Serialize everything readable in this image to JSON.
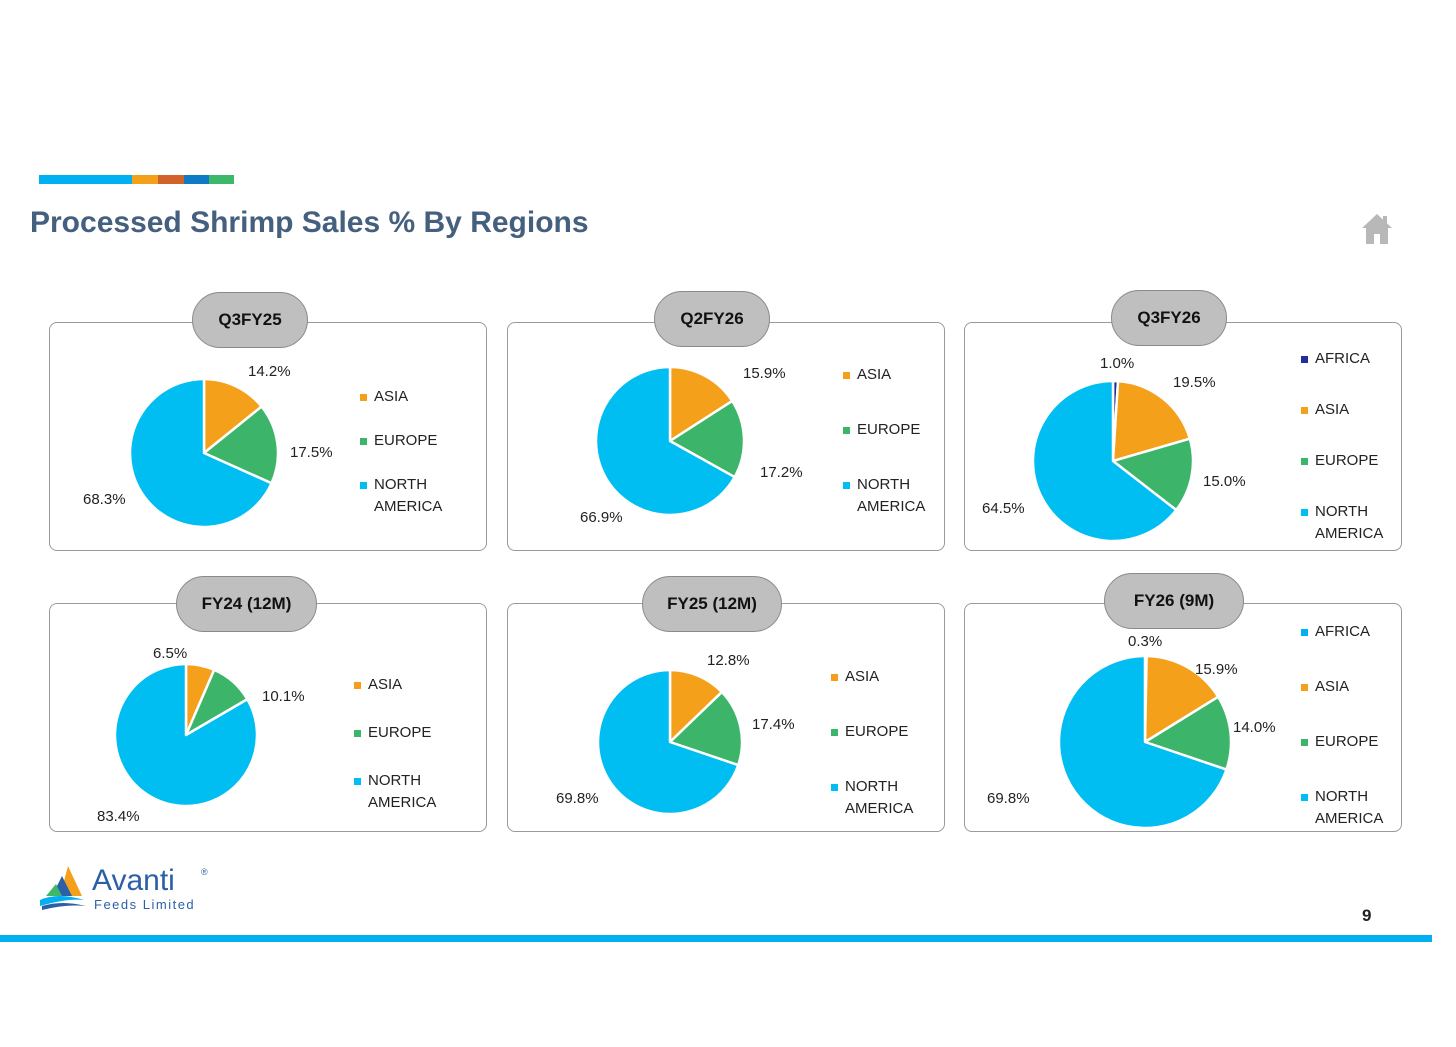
{
  "title": "Processed Shrimp Sales % By Regions",
  "accent_colors": [
    "#00b0f0",
    "#f5a01b",
    "#d0622b",
    "#0f7bc4",
    "#3db86b"
  ],
  "region_colors": {
    "AFRICA": "#1f2fa0",
    "AFRICA_FY26": "#00b0f0",
    "ASIA": "#f5a01b",
    "EUROPE": "#3cb56b",
    "NORTH AMERICA": "#00bdf2"
  },
  "footer": {
    "brand": "Avanti",
    "brand_sub": "Feeds Limited",
    "registered": "®",
    "page_number": "9"
  },
  "chart_data": [
    {
      "type": "pie",
      "title": "Q3FY25",
      "categories": [
        "ASIA",
        "EUROPE",
        "NORTH AMERICA"
      ],
      "values": [
        14.2,
        17.5,
        68.3
      ],
      "labels": [
        "14.2%",
        "17.5%",
        "68.3%"
      ],
      "legend": [
        "ASIA",
        "EUROPE",
        "NORTH\nAMERICA"
      ],
      "colors": [
        "#f5a01b",
        "#3cb56b",
        "#00bdf2"
      ]
    },
    {
      "type": "pie",
      "title": "Q2FY26",
      "categories": [
        "ASIA",
        "EUROPE",
        "NORTH AMERICA"
      ],
      "values": [
        15.9,
        17.2,
        66.9
      ],
      "labels": [
        "15.9%",
        "17.2%",
        "66.9%"
      ],
      "legend": [
        "ASIA",
        "EUROPE",
        "NORTH\nAMERICA"
      ],
      "colors": [
        "#f5a01b",
        "#3cb56b",
        "#00bdf2"
      ]
    },
    {
      "type": "pie",
      "title": "Q3FY26",
      "categories": [
        "AFRICA",
        "ASIA",
        "EUROPE",
        "NORTH AMERICA"
      ],
      "values": [
        1.0,
        19.5,
        15.0,
        64.5
      ],
      "labels": [
        "1.0%",
        "19.5%",
        "15.0%",
        "64.5%"
      ],
      "legend": [
        "AFRICA",
        "ASIA",
        "EUROPE",
        "NORTH\nAMERICA"
      ],
      "colors": [
        "#1f2fa0",
        "#f5a01b",
        "#3cb56b",
        "#00bdf2"
      ]
    },
    {
      "type": "pie",
      "title": "FY24 (12M)",
      "categories": [
        "ASIA",
        "EUROPE",
        "NORTH AMERICA"
      ],
      "values": [
        6.5,
        10.1,
        83.4
      ],
      "labels": [
        "6.5%",
        "10.1%",
        "83.4%"
      ],
      "legend": [
        "ASIA",
        "EUROPE",
        "NORTH\nAMERICA"
      ],
      "colors": [
        "#f5a01b",
        "#3cb56b",
        "#00bdf2"
      ]
    },
    {
      "type": "pie",
      "title": "FY25 (12M)",
      "categories": [
        "ASIA",
        "EUROPE",
        "NORTH AMERICA"
      ],
      "values": [
        12.8,
        17.4,
        69.8
      ],
      "labels": [
        "12.8%",
        "17.4%",
        "69.8%"
      ],
      "legend": [
        "ASIA",
        "EUROPE",
        "NORTH\nAMERICA"
      ],
      "colors": [
        "#f5a01b",
        "#3cb56b",
        "#00bdf2"
      ]
    },
    {
      "type": "pie",
      "title": "FY26 (9M)",
      "categories": [
        "AFRICA",
        "ASIA",
        "EUROPE",
        "NORTH AMERICA"
      ],
      "values": [
        0.3,
        15.9,
        14.0,
        69.8
      ],
      "labels": [
        "0.3%",
        "15.9%",
        "14.0%",
        "69.8%"
      ],
      "legend": [
        "AFRICA",
        "ASIA",
        "EUROPE",
        "NORTH\nAMERICA"
      ],
      "colors": [
        "#00b0f0",
        "#f5a01b",
        "#3cb56b",
        "#00bdf2"
      ]
    }
  ]
}
